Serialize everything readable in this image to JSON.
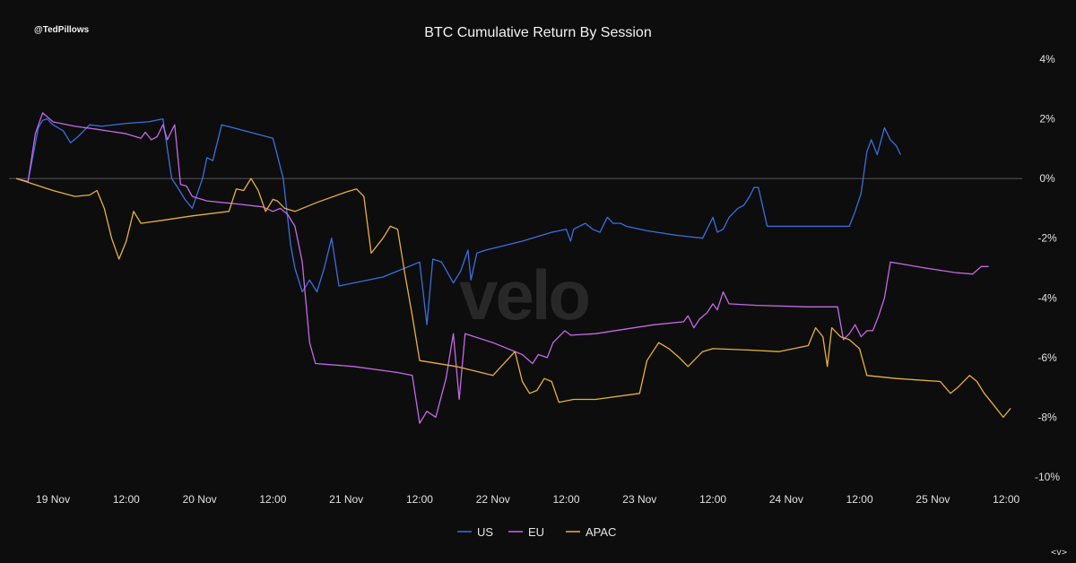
{
  "header": {
    "handle": "@TedPillows",
    "footer_mark": "<v>"
  },
  "watermark": "velo",
  "chart_data": {
    "type": "line",
    "title": "BTC Cumulative Return By Session",
    "xlabel": "",
    "ylabel": "",
    "xlim": [
      -0.05,
      6.92
    ],
    "ylim": [
      -10,
      4
    ],
    "y_ticks": [
      4,
      2,
      0,
      -2,
      -4,
      -6,
      -8,
      -10
    ],
    "y_tick_labels": [
      "4%",
      "2%",
      "0%",
      "-2%",
      "-4%",
      "-6%",
      "-8%",
      "-10%"
    ],
    "x_ticks": [
      0.25,
      0.75,
      1.25,
      1.75,
      2.25,
      2.75,
      3.25,
      3.75,
      4.25,
      4.75,
      5.25,
      5.75,
      6.25,
      6.75
    ],
    "x_tick_labels": [
      "19 Nov",
      "12:00",
      "20 Nov",
      "12:00",
      "21 Nov",
      "12:00",
      "22 Nov",
      "12:00",
      "23 Nov",
      "12:00",
      "24 Nov",
      "12:00",
      "25 Nov",
      "12:00"
    ],
    "grid": false,
    "zero_line": true,
    "legend_position": "bottom-center",
    "series": [
      {
        "name": "US",
        "color": "#3b6fe0",
        "points": [
          [
            0.0,
            0.0
          ],
          [
            0.08,
            -0.1
          ],
          [
            0.15,
            1.7
          ],
          [
            0.18,
            1.95
          ],
          [
            0.21,
            2.0
          ],
          [
            0.25,
            1.8
          ],
          [
            0.32,
            1.6
          ],
          [
            0.37,
            1.2
          ],
          [
            0.42,
            1.4
          ],
          [
            0.5,
            1.8
          ],
          [
            0.58,
            1.75
          ],
          [
            0.75,
            1.85
          ],
          [
            0.9,
            1.9
          ],
          [
            1.0,
            2.0
          ],
          [
            1.06,
            0.0
          ],
          [
            1.1,
            -0.3
          ],
          [
            1.15,
            -0.7
          ],
          [
            1.2,
            -1.0
          ],
          [
            1.27,
            0.0
          ],
          [
            1.3,
            0.7
          ],
          [
            1.34,
            0.6
          ],
          [
            1.4,
            1.8
          ],
          [
            1.75,
            1.35
          ],
          [
            1.82,
            0.0
          ],
          [
            1.87,
            -2.2
          ],
          [
            1.9,
            -3.0
          ],
          [
            1.95,
            -3.8
          ],
          [
            2.0,
            -3.4
          ],
          [
            2.05,
            -3.8
          ],
          [
            2.1,
            -3.0
          ],
          [
            2.15,
            -2.0
          ],
          [
            2.2,
            -3.6
          ],
          [
            2.3,
            -3.5
          ],
          [
            2.5,
            -3.3
          ],
          [
            2.65,
            -3.0
          ],
          [
            2.75,
            -2.8
          ],
          [
            2.8,
            -4.9
          ],
          [
            2.84,
            -2.7
          ],
          [
            2.9,
            -2.8
          ],
          [
            2.98,
            -3.5
          ],
          [
            3.03,
            -3.1
          ],
          [
            3.08,
            -2.4
          ],
          [
            3.1,
            -3.4
          ],
          [
            3.14,
            -2.5
          ],
          [
            3.2,
            -2.4
          ],
          [
            3.45,
            -2.1
          ],
          [
            3.65,
            -1.8
          ],
          [
            3.75,
            -1.7
          ],
          [
            3.78,
            -2.1
          ],
          [
            3.8,
            -1.7
          ],
          [
            3.84,
            -1.6
          ],
          [
            3.88,
            -1.5
          ],
          [
            3.93,
            -1.7
          ],
          [
            3.98,
            -1.8
          ],
          [
            4.03,
            -1.3
          ],
          [
            4.07,
            -1.5
          ],
          [
            4.12,
            -1.5
          ],
          [
            4.16,
            -1.6
          ],
          [
            4.3,
            -1.75
          ],
          [
            4.5,
            -1.9
          ],
          [
            4.68,
            -2.0
          ],
          [
            4.75,
            -1.3
          ],
          [
            4.78,
            -1.8
          ],
          [
            4.82,
            -1.7
          ],
          [
            4.86,
            -1.3
          ],
          [
            4.92,
            -1.0
          ],
          [
            4.96,
            -0.9
          ],
          [
            5.0,
            -0.6
          ],
          [
            5.03,
            -0.3
          ],
          [
            5.06,
            -0.3
          ],
          [
            5.12,
            -1.6
          ],
          [
            5.4,
            -1.6
          ],
          [
            5.68,
            -1.6
          ],
          [
            5.72,
            -1.1
          ],
          [
            5.76,
            -0.5
          ],
          [
            5.8,
            0.9
          ],
          [
            5.83,
            1.3
          ],
          [
            5.87,
            0.8
          ],
          [
            5.92,
            1.7
          ],
          [
            5.96,
            1.3
          ],
          [
            6.0,
            1.1
          ],
          [
            6.03,
            0.8
          ]
        ]
      },
      {
        "name": "EU",
        "color": "#c569e8",
        "points": [
          [
            0.0,
            0.0
          ],
          [
            0.08,
            -0.1
          ],
          [
            0.13,
            1.5
          ],
          [
            0.18,
            2.2
          ],
          [
            0.25,
            1.9
          ],
          [
            0.4,
            1.75
          ],
          [
            0.55,
            1.65
          ],
          [
            0.75,
            1.5
          ],
          [
            0.85,
            1.35
          ],
          [
            0.88,
            1.55
          ],
          [
            0.92,
            1.3
          ],
          [
            0.96,
            1.4
          ],
          [
            1.0,
            1.8
          ],
          [
            1.03,
            1.3
          ],
          [
            1.08,
            1.8
          ],
          [
            1.12,
            -0.2
          ],
          [
            1.16,
            -0.25
          ],
          [
            1.2,
            -0.6
          ],
          [
            1.3,
            -0.75
          ],
          [
            1.5,
            -0.85
          ],
          [
            1.68,
            -0.95
          ],
          [
            1.75,
            -1.1
          ],
          [
            1.8,
            -1.0
          ],
          [
            1.85,
            -1.2
          ],
          [
            1.9,
            -1.6
          ],
          [
            1.95,
            -2.8
          ],
          [
            2.0,
            -5.5
          ],
          [
            2.04,
            -6.2
          ],
          [
            2.3,
            -6.3
          ],
          [
            2.6,
            -6.5
          ],
          [
            2.7,
            -6.6
          ],
          [
            2.75,
            -8.2
          ],
          [
            2.8,
            -7.8
          ],
          [
            2.86,
            -8.0
          ],
          [
            2.93,
            -6.7
          ],
          [
            2.98,
            -5.2
          ],
          [
            3.02,
            -7.4
          ],
          [
            3.06,
            -5.2
          ],
          [
            3.25,
            -5.5
          ],
          [
            3.45,
            -5.9
          ],
          [
            3.52,
            -6.2
          ],
          [
            3.56,
            -5.9
          ],
          [
            3.62,
            -6.0
          ],
          [
            3.66,
            -5.5
          ],
          [
            3.7,
            -5.3
          ],
          [
            3.74,
            -5.1
          ],
          [
            3.78,
            -5.25
          ],
          [
            3.95,
            -5.2
          ],
          [
            4.15,
            -5.05
          ],
          [
            4.35,
            -4.9
          ],
          [
            4.55,
            -4.8
          ],
          [
            4.58,
            -4.6
          ],
          [
            4.62,
            -5.0
          ],
          [
            4.66,
            -4.7
          ],
          [
            4.71,
            -4.5
          ],
          [
            4.75,
            -4.2
          ],
          [
            4.78,
            -4.4
          ],
          [
            4.82,
            -3.8
          ],
          [
            4.86,
            -4.2
          ],
          [
            5.05,
            -4.25
          ],
          [
            5.4,
            -4.3
          ],
          [
            5.6,
            -4.3
          ],
          [
            5.64,
            -5.4
          ],
          [
            5.68,
            -5.2
          ],
          [
            5.72,
            -4.9
          ],
          [
            5.76,
            -5.3
          ],
          [
            5.8,
            -5.1
          ],
          [
            5.84,
            -5.1
          ],
          [
            5.88,
            -4.6
          ],
          [
            5.92,
            -4.0
          ],
          [
            5.96,
            -2.8
          ],
          [
            6.2,
            -3.0
          ],
          [
            6.4,
            -3.15
          ],
          [
            6.52,
            -3.2
          ],
          [
            6.58,
            -2.95
          ],
          [
            6.63,
            -2.95
          ]
        ]
      },
      {
        "name": "APAC",
        "color": "#e6b23c",
        "points": [
          [
            0.0,
            0.0
          ],
          [
            0.25,
            -0.4
          ],
          [
            0.4,
            -0.6
          ],
          [
            0.5,
            -0.55
          ],
          [
            0.55,
            -0.4
          ],
          [
            0.6,
            -1.0
          ],
          [
            0.65,
            -2.0
          ],
          [
            0.7,
            -2.7
          ],
          [
            0.75,
            -2.1
          ],
          [
            0.8,
            -1.1
          ],
          [
            0.85,
            -1.5
          ],
          [
            1.0,
            -1.4
          ],
          [
            1.2,
            -1.25
          ],
          [
            1.45,
            -1.1
          ],
          [
            1.5,
            -0.35
          ],
          [
            1.55,
            -0.4
          ],
          [
            1.6,
            0.0
          ],
          [
            1.65,
            -0.4
          ],
          [
            1.7,
            -1.1
          ],
          [
            1.75,
            -0.7
          ],
          [
            1.78,
            -0.75
          ],
          [
            1.83,
            -1.0
          ],
          [
            1.9,
            -1.1
          ],
          [
            2.05,
            -0.8
          ],
          [
            2.25,
            -0.45
          ],
          [
            2.32,
            -0.35
          ],
          [
            2.37,
            -0.6
          ],
          [
            2.42,
            -2.5
          ],
          [
            2.5,
            -2.0
          ],
          [
            2.55,
            -1.6
          ],
          [
            2.6,
            -1.7
          ],
          [
            2.65,
            -3.2
          ],
          [
            2.7,
            -4.6
          ],
          [
            2.75,
            -6.1
          ],
          [
            3.0,
            -6.3
          ],
          [
            3.25,
            -6.6
          ],
          [
            3.4,
            -5.8
          ],
          [
            3.45,
            -6.8
          ],
          [
            3.5,
            -7.2
          ],
          [
            3.55,
            -7.1
          ],
          [
            3.6,
            -6.7
          ],
          [
            3.65,
            -6.8
          ],
          [
            3.7,
            -7.5
          ],
          [
            3.8,
            -7.4
          ],
          [
            3.95,
            -7.4
          ],
          [
            4.25,
            -7.2
          ],
          [
            4.3,
            -6.1
          ],
          [
            4.38,
            -5.5
          ],
          [
            4.45,
            -5.7
          ],
          [
            4.52,
            -6.0
          ],
          [
            4.58,
            -6.3
          ],
          [
            4.68,
            -5.8
          ],
          [
            4.75,
            -5.7
          ],
          [
            5.0,
            -5.75
          ],
          [
            5.2,
            -5.8
          ],
          [
            5.3,
            -5.7
          ],
          [
            5.4,
            -5.6
          ],
          [
            5.45,
            -5.0
          ],
          [
            5.5,
            -5.3
          ],
          [
            5.53,
            -6.3
          ],
          [
            5.56,
            -5.0
          ],
          [
            5.62,
            -5.3
          ],
          [
            5.68,
            -5.4
          ],
          [
            5.75,
            -5.7
          ],
          [
            5.8,
            -6.6
          ],
          [
            6.0,
            -6.7
          ],
          [
            6.3,
            -6.8
          ],
          [
            6.37,
            -7.2
          ],
          [
            6.42,
            -7.0
          ],
          [
            6.5,
            -6.6
          ],
          [
            6.55,
            -6.8
          ],
          [
            6.6,
            -7.2
          ],
          [
            6.65,
            -7.5
          ],
          [
            6.73,
            -8.0
          ],
          [
            6.78,
            -7.7
          ]
        ]
      }
    ]
  }
}
